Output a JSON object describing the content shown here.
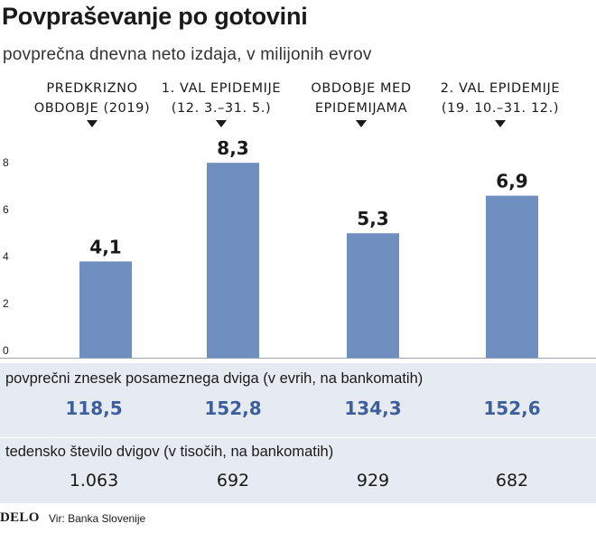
{
  "header": {
    "title": "Povpraševanje po gotovini",
    "subtitle": "povprečna dnevna neto izdaja, v milijonih evrov"
  },
  "chart_data": {
    "type": "bar",
    "categories": [
      [
        "PREDKRIZNO",
        "OBDOBJE (2019)"
      ],
      [
        "1. VAL EPIDEMIJE",
        "(12. 3.–31. 5.)"
      ],
      [
        "OBDOBJE MED",
        "EPIDEMIJAMA"
      ],
      [
        "2. VAL EPIDEMIJE",
        "(19. 10.–31. 12.)"
      ]
    ],
    "values": [
      4.1,
      8.3,
      5.3,
      6.9
    ],
    "value_labels": [
      "4,1",
      "8,3",
      "5,3",
      "6,9"
    ],
    "yticks": [
      "0",
      "2",
      "4",
      "6",
      "8"
    ],
    "ylim": [
      0,
      10
    ],
    "bar_color": "#6f8fc0",
    "grid": false
  },
  "withdrawal_amount": {
    "title": "povprečni znesek posameznega dviga (v evrih, na bankomatih)",
    "values": [
      "118,5",
      "152,8",
      "134,3",
      "152,6"
    ]
  },
  "weekly_withdrawals": {
    "title": "tedensko število dvigov (v tisočih, na bankomatih)",
    "values": [
      "1.063",
      "692",
      "929",
      "682"
    ]
  },
  "footer": {
    "logo": "DELO",
    "source": "Vir: Banka Slovenije"
  },
  "colors": {
    "bar": "#6f8fc0",
    "band": "#e6ebf2",
    "highlight_text": "#3e5f9c"
  }
}
